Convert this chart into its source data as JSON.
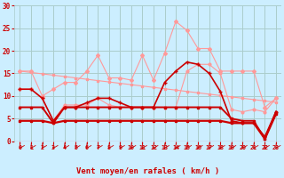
{
  "x": [
    0,
    1,
    2,
    3,
    4,
    5,
    6,
    7,
    8,
    9,
    10,
    11,
    12,
    13,
    14,
    15,
    16,
    17,
    18,
    19,
    20,
    21,
    22,
    23
  ],
  "line_diag": [
    15.5,
    15.2,
    14.9,
    14.6,
    14.3,
    14.0,
    13.7,
    13.4,
    13.1,
    12.8,
    12.5,
    12.2,
    11.9,
    11.6,
    11.3,
    11.0,
    10.7,
    10.4,
    10.1,
    9.8,
    9.5,
    9.2,
    8.9,
    8.6
  ],
  "line_rafales_pink": [
    15.5,
    15.5,
    10.0,
    11.5,
    13.0,
    13.0,
    15.5,
    19.0,
    14.0,
    14.0,
    13.5,
    19.0,
    13.5,
    19.5,
    26.5,
    24.5,
    20.5,
    20.5,
    15.5,
    15.5,
    15.5,
    15.5,
    7.5,
    9.5
  ],
  "line_moy_pink": [
    11.5,
    11.5,
    9.5,
    4.5,
    8.0,
    8.0,
    8.0,
    9.5,
    8.0,
    7.5,
    7.5,
    7.5,
    7.5,
    7.5,
    7.5,
    15.5,
    17.0,
    17.0,
    15.0,
    7.0,
    6.5,
    7.0,
    6.5,
    9.5
  ],
  "line_moy_dark": [
    11.5,
    11.5,
    9.5,
    4.5,
    7.5,
    7.5,
    8.5,
    9.5,
    9.5,
    8.5,
    7.5,
    7.5,
    7.5,
    13.0,
    15.5,
    17.5,
    17.0,
    15.0,
    11.0,
    4.5,
    4.0,
    4.0,
    1.0,
    6.5
  ],
  "line_flat_dark": [
    7.5,
    7.5,
    7.5,
    4.0,
    7.5,
    7.5,
    7.5,
    7.5,
    7.5,
    7.5,
    7.5,
    7.5,
    7.5,
    7.5,
    7.5,
    7.5,
    7.5,
    7.5,
    7.5,
    5.0,
    4.5,
    4.5,
    0.5,
    6.5
  ],
  "line_low_dark": [
    4.5,
    4.5,
    4.5,
    4.0,
    4.5,
    4.5,
    4.5,
    4.5,
    4.5,
    4.5,
    4.5,
    4.5,
    4.5,
    4.5,
    4.5,
    4.5,
    4.5,
    4.5,
    4.5,
    4.0,
    4.0,
    4.0,
    0.5,
    6.0
  ],
  "bg_color": "#cceeff",
  "grid_color": "#aacccc",
  "pink": "#ff9999",
  "dark_red": "#cc0000",
  "xlabel": "Vent moyen/en rafales ( km/h )",
  "ylim": [
    0,
    30
  ],
  "xlim": [
    -0.5,
    23.5
  ],
  "yticks": [
    0,
    5,
    10,
    15,
    20,
    25,
    30
  ],
  "xticks": [
    0,
    1,
    2,
    3,
    4,
    5,
    6,
    7,
    8,
    9,
    10,
    11,
    12,
    13,
    14,
    15,
    16,
    17,
    18,
    19,
    20,
    21,
    22,
    23
  ]
}
